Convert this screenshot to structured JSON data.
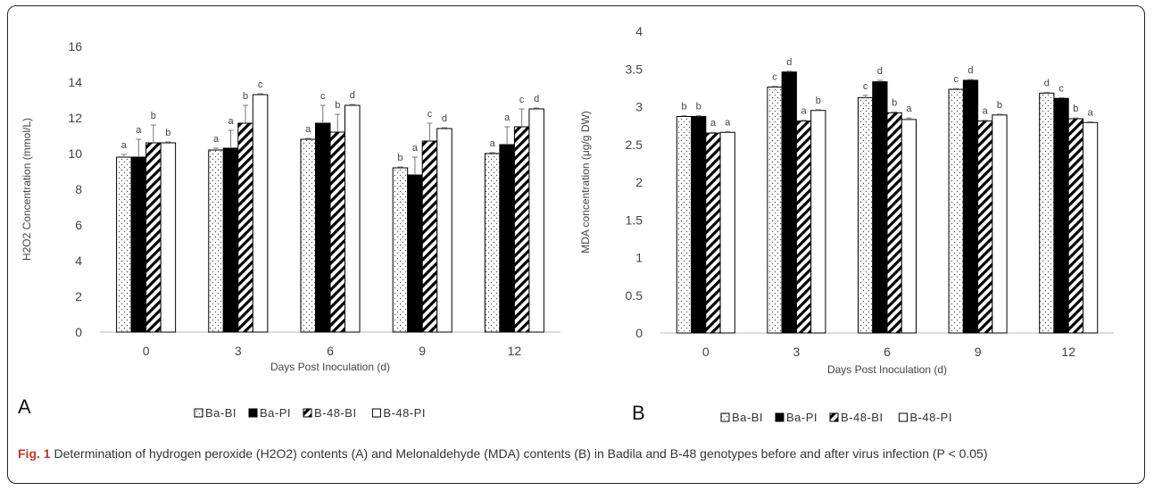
{
  "chart_data": [
    {
      "type": "bar",
      "panel_label": "A",
      "ylabel": "H2O2 Concentration (mmol/L)",
      "xlabel": "Days Post Inoculation (d)",
      "categories": [
        "0",
        "3",
        "6",
        "9",
        "12"
      ],
      "ylim": [
        0,
        16
      ],
      "yticks": [
        "0",
        "2",
        "4",
        "6",
        "8",
        "10",
        "12",
        "14",
        "16"
      ],
      "series": [
        {
          "name": "Ba-BI",
          "values": [
            9.8,
            10.2,
            10.8,
            9.2,
            10.0
          ],
          "errors": [
            0.15,
            0.1,
            0.05,
            0.05,
            0.05
          ],
          "letters": [
            "a",
            "a",
            "a",
            "b",
            "a"
          ]
        },
        {
          "name": "Ba-PI",
          "values": [
            9.8,
            10.3,
            11.7,
            8.8,
            10.5
          ],
          "errors": [
            1.0,
            1.0,
            1.0,
            1.0,
            1.0
          ],
          "letters": [
            "a",
            "a",
            "c",
            "a",
            "a"
          ]
        },
        {
          "name": "B-48-BI",
          "values": [
            10.6,
            11.7,
            11.2,
            10.7,
            11.5
          ],
          "errors": [
            1.0,
            1.0,
            1.0,
            1.0,
            1.0
          ],
          "letters": [
            "b",
            "b",
            "b",
            "c",
            "c"
          ]
        },
        {
          "name": "B-48-PI",
          "values": [
            10.6,
            13.3,
            12.7,
            11.4,
            12.5
          ],
          "errors": [
            0.05,
            0.05,
            0.05,
            0.05,
            0.05
          ],
          "letters": [
            "b",
            "c",
            "d",
            "d",
            "d"
          ]
        }
      ],
      "legend": [
        "Ba-BI",
        "Ba-PI",
        "B-48-BI",
        "B-48-PI"
      ],
      "grid": false,
      "legend_position": "bottom"
    },
    {
      "type": "bar",
      "panel_label": "B",
      "ylabel": "MDA concentration (μg/g DW)",
      "xlabel": "Days Post Inoculation (d)",
      "categories": [
        "0",
        "3",
        "6",
        "9",
        "12"
      ],
      "ylim": [
        0,
        4
      ],
      "yticks": [
        "0",
        "0.5",
        "1",
        "1.5",
        "2",
        "2.5",
        "3",
        "3.5",
        "4"
      ],
      "series": [
        {
          "name": "Ba-BI",
          "values": [
            2.87,
            3.26,
            3.12,
            3.23,
            3.18
          ],
          "errors": [
            0.01,
            0.01,
            0.03,
            0.01,
            0.01
          ],
          "letters": [
            "b",
            "c",
            "c",
            "c",
            "d"
          ]
        },
        {
          "name": "Ba-PI",
          "values": [
            2.87,
            3.46,
            3.33,
            3.35,
            3.11
          ],
          "errors": [
            0.01,
            0.01,
            0.02,
            0.01,
            0.01
          ],
          "letters": [
            "b",
            "d",
            "d",
            "d",
            "c"
          ]
        },
        {
          "name": "B-48-BI",
          "values": [
            2.65,
            2.81,
            2.92,
            2.81,
            2.84
          ],
          "errors": [
            0.01,
            0.01,
            0.01,
            0.01,
            0.01
          ],
          "letters": [
            "a",
            "a",
            "b",
            "a",
            "b"
          ]
        },
        {
          "name": "B-48-PI",
          "values": [
            2.66,
            2.95,
            2.83,
            2.89,
            2.79
          ],
          "errors": [
            0.01,
            0.01,
            0.02,
            0.01,
            0.01
          ],
          "letters": [
            "a",
            "b",
            "a",
            "b",
            "a"
          ]
        }
      ],
      "legend": [
        "Ba-BI",
        "Ba-PI",
        "B-48-BI",
        "B-48-PI"
      ],
      "grid": false,
      "legend_position": "bottom"
    }
  ],
  "caption": {
    "label": "Fig. 1",
    "text": "Determination of hydrogen peroxide (H2O2) contents (A) and Melonaldehyde (MDA) contents (B) in Badila and B-48 genotypes before and after virus infection (P < 0.05)"
  },
  "colors": {
    "solid": "#000000",
    "open": "#ffffff",
    "outline": "#000000",
    "caption_label": "#c0392b"
  }
}
